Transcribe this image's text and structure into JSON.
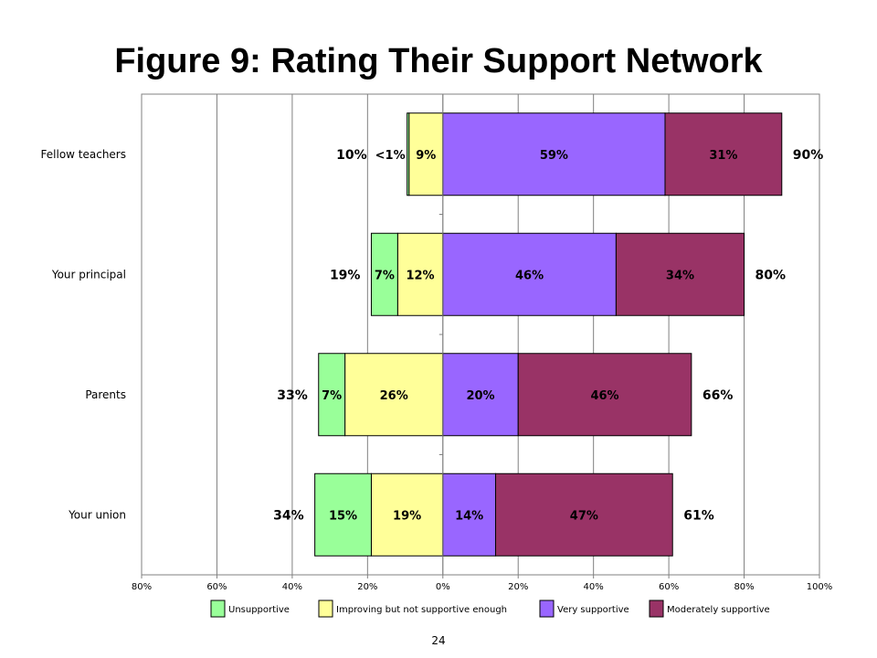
{
  "page": {
    "title": "Figure 9:  Rating Their Support Network",
    "page_number": "24"
  },
  "chart_data": {
    "type": "bar",
    "orientation": "horizontal",
    "stacked": "diverging",
    "title": "Figure 9:  Rating Their Support Network",
    "categories": [
      "Fellow teachers",
      "Your principal",
      "Parents",
      "Your union"
    ],
    "series": [
      {
        "name": "Unsupportive",
        "side": "negative",
        "color": "#99ff99",
        "values": [
          0.5,
          7,
          7,
          15
        ],
        "labels": [
          "<1%",
          "7%",
          "7%",
          "15%"
        ]
      },
      {
        "name": "Improving but not supportive enough",
        "side": "negative",
        "color": "#ffff99",
        "values": [
          9,
          12,
          26,
          19
        ],
        "labels": [
          "9%",
          "12%",
          "26%",
          "19%"
        ]
      },
      {
        "name": "Very supportive",
        "side": "positive",
        "color": "#9966ff",
        "values": [
          59,
          46,
          20,
          14
        ],
        "labels": [
          "59%",
          "46%",
          "20%",
          "14%"
        ]
      },
      {
        "name": "Moderately supportive",
        "side": "positive",
        "color": "#993366",
        "values": [
          31,
          34,
          46,
          47
        ],
        "labels": [
          "31%",
          "34%",
          "46%",
          "47%"
        ]
      }
    ],
    "negative_totals": [
      "10%",
      "19%",
      "33%",
      "34%"
    ],
    "positive_totals": [
      "90%",
      "80%",
      "66%",
      "61%"
    ],
    "x_ticks": [
      "80%",
      "60%",
      "40%",
      "20%",
      "0%",
      "20%",
      "40%",
      "60%",
      "80%",
      "100%"
    ],
    "xlim": [
      -80,
      100
    ],
    "grid": true,
    "legend_position": "bottom"
  }
}
